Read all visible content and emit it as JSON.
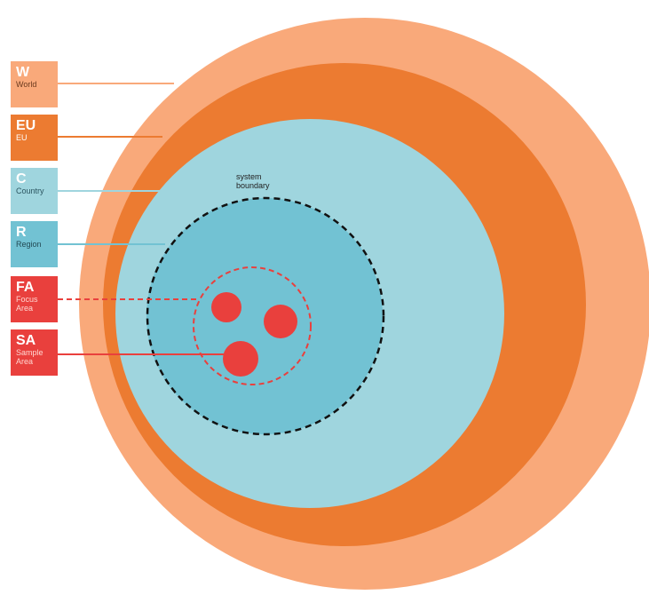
{
  "legend": [
    {
      "code": "W",
      "label": "World",
      "color": "#f9a97a"
    },
    {
      "code": "EU",
      "label": "EU",
      "color": "#ec7b31"
    },
    {
      "code": "C",
      "label": "Country",
      "color": "#9fd5de"
    },
    {
      "code": "R",
      "label": "Region",
      "color": "#72c2d3"
    },
    {
      "code": "FA",
      "label": "Focus\nArea",
      "color": "#e9403d"
    },
    {
      "code": "SA",
      "label": "Sample\nArea",
      "color": "#e9403d"
    }
  ],
  "boundary_label": "system\nboundary",
  "colors": {
    "world": "#f9a97a",
    "eu": "#ec7b31",
    "country": "#9fd5de",
    "region": "#72c2d3",
    "focus_area": "#e9403d",
    "sample_area": "#e9403d",
    "system_boundary": "#111111"
  }
}
